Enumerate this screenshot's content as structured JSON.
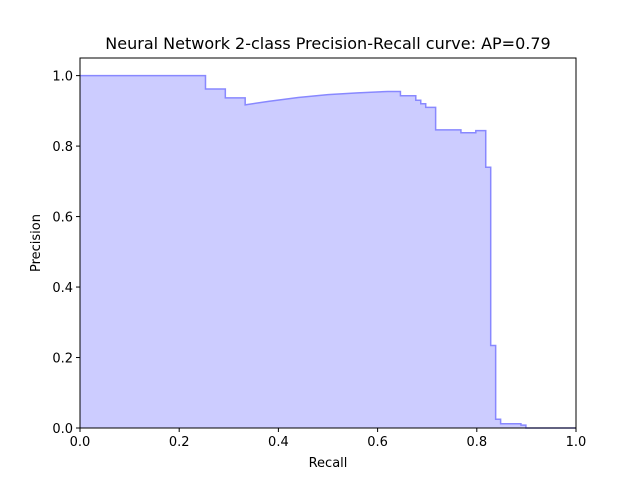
{
  "chart_data": {
    "type": "area",
    "title": "Neural Network 2-class Precision-Recall curve: AP=0.79",
    "xlabel": "Recall",
    "ylabel": "Precision",
    "xlim": [
      0.0,
      1.0
    ],
    "ylim": [
      0.0,
      1.05
    ],
    "xticks": [
      0.0,
      0.2,
      0.4,
      0.6,
      0.8,
      1.0
    ],
    "yticks": [
      0.0,
      0.2,
      0.4,
      0.6,
      0.8,
      1.0
    ],
    "xtick_labels": [
      "0.0",
      "0.2",
      "0.4",
      "0.6",
      "0.8",
      "1.0"
    ],
    "ytick_labels": [
      "0.0",
      "0.2",
      "0.4",
      "0.6",
      "0.8",
      "1.0"
    ],
    "grid": false,
    "step": "post",
    "fill_color": "#ccccff",
    "line_color": "#8888ff",
    "series": [
      {
        "recall": [
          0.0,
          0.253,
          0.253,
          0.293,
          0.293,
          0.333,
          0.333,
          0.38,
          0.44,
          0.5,
          0.56,
          0.62,
          0.646,
          0.646,
          0.677,
          0.677,
          0.687,
          0.687,
          0.697,
          0.697,
          0.717,
          0.717,
          0.768,
          0.768,
          0.798,
          0.798,
          0.818,
          0.818,
          0.828,
          0.828,
          0.838,
          0.838,
          0.848,
          0.848,
          0.889,
          0.889,
          0.899,
          0.899,
          1.0
        ],
        "precision": [
          1.0,
          1.0,
          0.962,
          0.962,
          0.937,
          0.937,
          0.917,
          0.927,
          0.938,
          0.946,
          0.951,
          0.955,
          0.955,
          0.943,
          0.943,
          0.93,
          0.93,
          0.92,
          0.92,
          0.91,
          0.91,
          0.846,
          0.846,
          0.838,
          0.838,
          0.844,
          0.844,
          0.74,
          0.74,
          0.234,
          0.234,
          0.025,
          0.025,
          0.012,
          0.012,
          0.008,
          0.008,
          0.0,
          0.0
        ]
      }
    ]
  }
}
